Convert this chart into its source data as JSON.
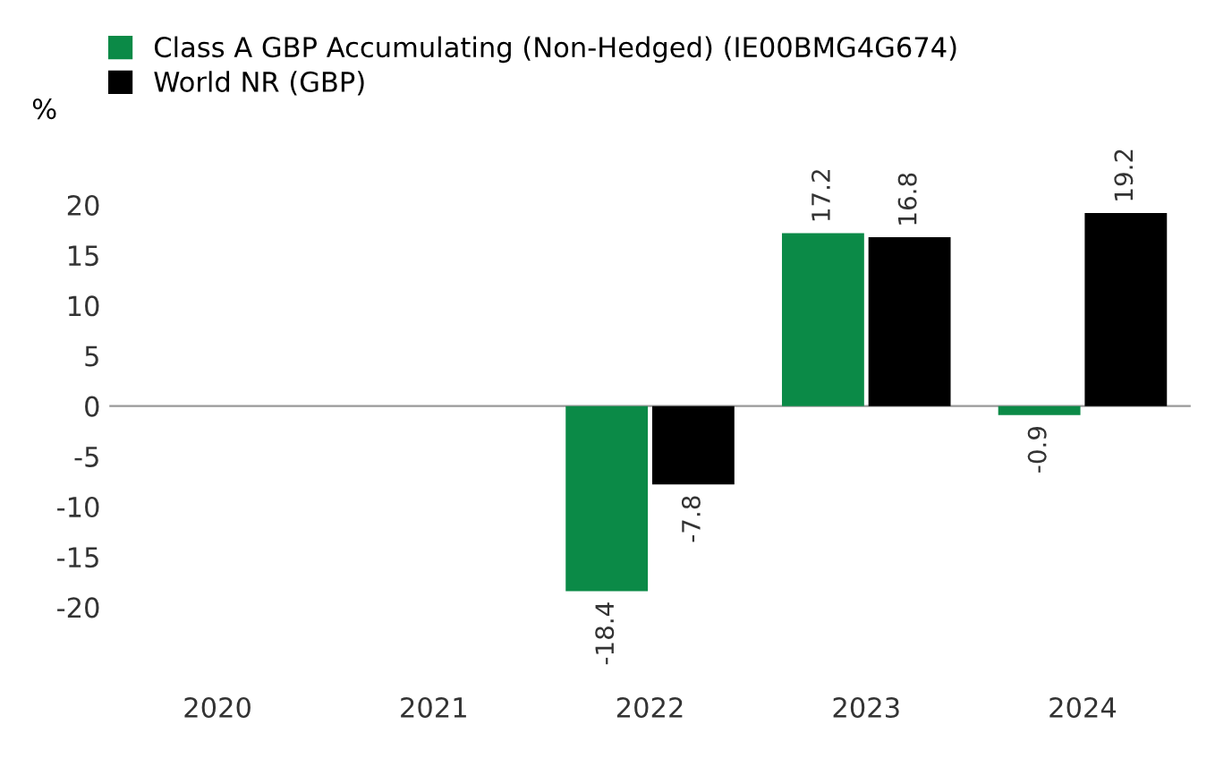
{
  "chart_data": {
    "type": "bar",
    "ylabel": "%",
    "categories": [
      "2020",
      "2021",
      "2022",
      "2023",
      "2024"
    ],
    "series": [
      {
        "name": "Class A GBP Accumulating (Non-Hedged) (IE00BMG4G674)",
        "color": "#0b8a47",
        "values": [
          null,
          null,
          -18.4,
          17.2,
          -0.9
        ]
      },
      {
        "name": "World NR (GBP)",
        "color": "#000000",
        "values": [
          null,
          null,
          -7.8,
          16.8,
          19.2
        ]
      }
    ],
    "ylim": [
      -20,
      20
    ],
    "yticks": [
      -20,
      -15,
      -10,
      -5,
      0,
      5,
      10,
      15,
      20
    ],
    "ref_lines": [
      {
        "axis": "y",
        "value": 0,
        "color": "#999999"
      }
    ],
    "data_labels": true,
    "grid": false,
    "legend": "top left"
  }
}
